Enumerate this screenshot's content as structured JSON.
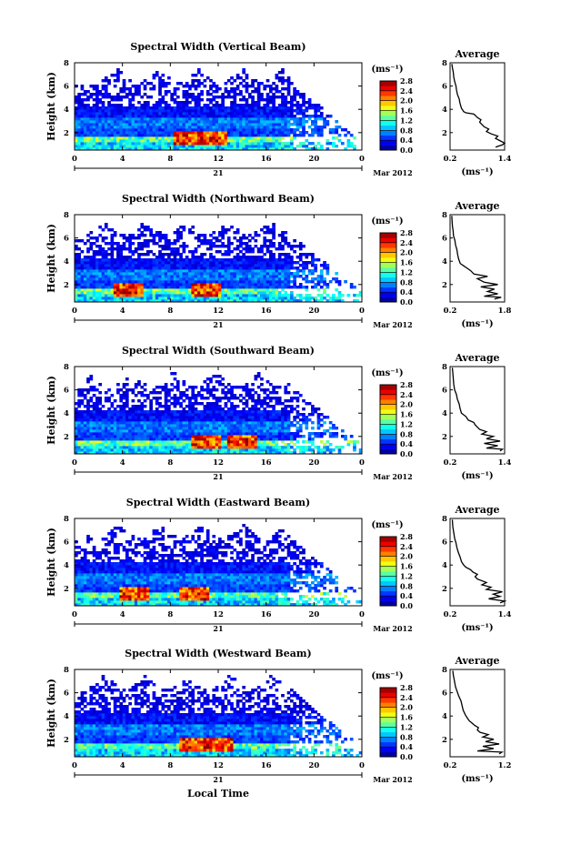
{
  "chart_data": [
    {
      "type": "heatmap",
      "title": "Spectral Width (Vertical Beam)",
      "ylabel": "Height (km)",
      "x_ticks": [
        "0",
        "4",
        "8",
        "12",
        "16",
        "20",
        "0"
      ],
      "y_ticks": [
        "2",
        "4",
        "6",
        "8"
      ],
      "xlim": [
        0,
        24
      ],
      "ylim": [
        0.5,
        8
      ],
      "date_day": "21",
      "date_label": "Mar 2012",
      "colorbar": {
        "unit": "(ms⁻¹)",
        "ticks": [
          "0.0",
          "0.4",
          "0.8",
          "1.2",
          "1.6",
          "2.0",
          "2.4",
          "2.8"
        ],
        "range": [
          0,
          2.8
        ]
      },
      "hotspot_hours": [
        9.5,
        11.5
      ],
      "avg": {
        "title": "Average",
        "unit": "(ms⁻¹)",
        "x_ticks": [
          "0.2",
          "1.4"
        ],
        "y_ticks": [
          "2",
          "4",
          "6",
          "8"
        ],
        "xlim": [
          0.2,
          1.4
        ],
        "profile": [
          [
            1.2,
            0.75
          ],
          [
            1.35,
            0.95
          ],
          [
            1.4,
            1.1
          ],
          [
            1.3,
            1.3
          ],
          [
            1.2,
            1.5
          ],
          [
            1.25,
            1.7
          ],
          [
            1.1,
            1.9
          ],
          [
            1.0,
            2.1
          ],
          [
            1.05,
            2.3
          ],
          [
            0.95,
            2.5
          ],
          [
            0.9,
            2.7
          ],
          [
            0.85,
            2.9
          ],
          [
            0.88,
            3.1
          ],
          [
            0.8,
            3.3
          ],
          [
            0.75,
            3.5
          ],
          [
            0.72,
            3.6
          ],
          [
            0.55,
            3.7
          ],
          [
            0.5,
            3.8
          ],
          [
            0.45,
            4.1
          ],
          [
            0.42,
            4.5
          ],
          [
            0.4,
            4.9
          ],
          [
            0.36,
            5.3
          ],
          [
            0.34,
            5.7
          ],
          [
            0.33,
            6.0
          ],
          [
            0.3,
            6.4
          ],
          [
            0.28,
            6.8
          ],
          [
            0.27,
            7.2
          ],
          [
            0.25,
            7.6
          ],
          [
            0.24,
            7.9
          ]
        ]
      }
    },
    {
      "type": "heatmap",
      "title": "Spectral Width (Northward Beam)",
      "ylabel": "Height (km)",
      "x_ticks": [
        "0",
        "4",
        "8",
        "12",
        "16",
        "20",
        "0"
      ],
      "y_ticks": [
        "2",
        "4",
        "6",
        "8"
      ],
      "xlim": [
        0,
        24
      ],
      "ylim": [
        0.5,
        8
      ],
      "date_day": "21",
      "date_label": "Mar 2012",
      "colorbar": {
        "unit": "(ms⁻¹)",
        "ticks": [
          "0.0",
          "0.4",
          "0.8",
          "1.2",
          "1.6",
          "2.0",
          "2.4",
          "2.8"
        ],
        "range": [
          0,
          2.8
        ]
      },
      "hotspot_hours": [
        4.5,
        11.0
      ],
      "avg": {
        "title": "Average",
        "unit": "(ms⁻¹)",
        "x_ticks": [
          "0.2",
          "1.8"
        ],
        "y_ticks": [
          "2",
          "4",
          "6",
          "8"
        ],
        "xlim": [
          0.2,
          1.8
        ],
        "profile": [
          [
            1.5,
            0.75
          ],
          [
            1.7,
            0.9
          ],
          [
            1.2,
            1.0
          ],
          [
            1.6,
            1.2
          ],
          [
            1.3,
            1.4
          ],
          [
            1.5,
            1.6
          ],
          [
            1.1,
            1.8
          ],
          [
            1.6,
            2.0
          ],
          [
            1.2,
            2.2
          ],
          [
            1.0,
            2.5
          ],
          [
            1.3,
            2.7
          ],
          [
            0.9,
            2.9
          ],
          [
            0.8,
            3.2
          ],
          [
            0.7,
            3.4
          ],
          [
            0.6,
            3.6
          ],
          [
            0.5,
            3.8
          ],
          [
            0.45,
            4.2
          ],
          [
            0.42,
            4.6
          ],
          [
            0.4,
            5.0
          ],
          [
            0.36,
            5.4
          ],
          [
            0.34,
            5.8
          ],
          [
            0.3,
            6.2
          ],
          [
            0.29,
            6.6
          ],
          [
            0.27,
            7.0
          ],
          [
            0.26,
            7.4
          ],
          [
            0.25,
            7.9
          ]
        ]
      }
    },
    {
      "type": "heatmap",
      "title": "Spectral Width (Southward Beam)",
      "ylabel": "Height (km)",
      "x_ticks": [
        "0",
        "4",
        "8",
        "12",
        "16",
        "20",
        "0"
      ],
      "y_ticks": [
        "2",
        "4",
        "6",
        "8"
      ],
      "xlim": [
        0,
        24
      ],
      "ylim": [
        0.5,
        8
      ],
      "date_day": "21",
      "date_label": "Mar 2012",
      "colorbar": {
        "unit": "(ms⁻¹)",
        "ticks": [
          "0.0",
          "0.4",
          "0.8",
          "1.2",
          "1.6",
          "2.0",
          "2.4",
          "2.8"
        ],
        "range": [
          0,
          2.8
        ]
      },
      "hotspot_hours": [
        11.0,
        14.0
      ],
      "avg": {
        "title": "Average",
        "unit": "(ms⁻¹)",
        "x_ticks": [
          "0.2",
          "1.4"
        ],
        "y_ticks": [
          "2",
          "4",
          "6",
          "8"
        ],
        "xlim": [
          0.2,
          1.4
        ],
        "profile": [
          [
            1.3,
            0.75
          ],
          [
            1.35,
            0.9
          ],
          [
            1.0,
            1.0
          ],
          [
            1.25,
            1.2
          ],
          [
            0.95,
            1.4
          ],
          [
            1.3,
            1.6
          ],
          [
            1.0,
            1.8
          ],
          [
            1.15,
            2.0
          ],
          [
            0.9,
            2.2
          ],
          [
            1.0,
            2.4
          ],
          [
            0.85,
            2.6
          ],
          [
            0.8,
            2.8
          ],
          [
            0.75,
            3.0
          ],
          [
            0.72,
            3.2
          ],
          [
            0.6,
            3.4
          ],
          [
            0.55,
            3.7
          ],
          [
            0.45,
            4.0
          ],
          [
            0.42,
            4.4
          ],
          [
            0.4,
            4.8
          ],
          [
            0.36,
            5.2
          ],
          [
            0.34,
            5.6
          ],
          [
            0.3,
            6.0
          ],
          [
            0.28,
            6.5
          ],
          [
            0.27,
            7.0
          ],
          [
            0.26,
            7.5
          ],
          [
            0.25,
            7.9
          ]
        ]
      }
    },
    {
      "type": "heatmap",
      "title": "Spectral Width (Eastward Beam)",
      "ylabel": "Height (km)",
      "x_ticks": [
        "0",
        "4",
        "8",
        "12",
        "16",
        "20",
        "0"
      ],
      "y_ticks": [
        "2",
        "4",
        "6",
        "8"
      ],
      "xlim": [
        0,
        24
      ],
      "ylim": [
        0.5,
        8
      ],
      "date_day": "21",
      "date_label": "Mar 2012",
      "colorbar": {
        "unit": "(ms⁻¹)",
        "ticks": [
          "0.0",
          "0.4",
          "0.8",
          "1.2",
          "1.6",
          "2.0",
          "2.4",
          "2.8"
        ],
        "range": [
          0,
          2.8
        ]
      },
      "hotspot_hours": [
        5.0,
        10.0
      ],
      "avg": {
        "title": "Average",
        "unit": "(ms⁻¹)",
        "x_ticks": [
          "0.2",
          "1.4"
        ],
        "y_ticks": [
          "2",
          "4",
          "6",
          "8"
        ],
        "xlim": [
          0.2,
          1.4
        ],
        "profile": [
          [
            1.3,
            0.75
          ],
          [
            1.4,
            0.9
          ],
          [
            1.05,
            1.1
          ],
          [
            1.3,
            1.3
          ],
          [
            1.15,
            1.5
          ],
          [
            1.35,
            1.7
          ],
          [
            1.0,
            1.9
          ],
          [
            1.1,
            2.1
          ],
          [
            0.9,
            2.3
          ],
          [
            1.0,
            2.5
          ],
          [
            0.8,
            2.8
          ],
          [
            0.75,
            3.0
          ],
          [
            0.8,
            3.2
          ],
          [
            0.7,
            3.4
          ],
          [
            0.65,
            3.6
          ],
          [
            0.55,
            3.8
          ],
          [
            0.5,
            4.0
          ],
          [
            0.45,
            4.3
          ],
          [
            0.42,
            4.7
          ],
          [
            0.38,
            5.1
          ],
          [
            0.35,
            5.5
          ],
          [
            0.33,
            5.9
          ],
          [
            0.3,
            6.3
          ],
          [
            0.28,
            6.8
          ],
          [
            0.26,
            7.3
          ],
          [
            0.25,
            7.9
          ]
        ]
      }
    },
    {
      "type": "heatmap",
      "title": "Spectral Width (Westward Beam)",
      "ylabel": "Height (km)",
      "xlabel": "Local Time",
      "x_ticks": [
        "0",
        "4",
        "8",
        "12",
        "16",
        "20",
        "0"
      ],
      "y_ticks": [
        "2",
        "4",
        "6",
        "8"
      ],
      "xlim": [
        0,
        24
      ],
      "ylim": [
        0.5,
        8
      ],
      "date_day": "21",
      "date_label": "Mar 2012",
      "colorbar": {
        "unit": "(ms⁻¹)",
        "ticks": [
          "0.0",
          "0.4",
          "0.8",
          "1.2",
          "1.6",
          "2.0",
          "2.4",
          "2.8"
        ],
        "range": [
          0,
          2.8
        ]
      },
      "hotspot_hours": [
        10.0,
        12.0
      ],
      "avg": {
        "title": "Average",
        "unit": "(ms⁻¹)",
        "x_ticks": [
          "0.2",
          "1.2"
        ],
        "y_ticks": [
          "2",
          "4",
          "6",
          "8"
        ],
        "xlim": [
          0.2,
          1.2
        ],
        "profile": [
          [
            1.1,
            0.75
          ],
          [
            1.15,
            0.9
          ],
          [
            0.7,
            1.0
          ],
          [
            1.0,
            1.2
          ],
          [
            0.8,
            1.4
          ],
          [
            1.1,
            1.6
          ],
          [
            0.85,
            1.8
          ],
          [
            1.0,
            2.0
          ],
          [
            0.8,
            2.2
          ],
          [
            0.9,
            2.4
          ],
          [
            0.75,
            2.6
          ],
          [
            0.7,
            2.8
          ],
          [
            0.72,
            3.0
          ],
          [
            0.65,
            3.2
          ],
          [
            0.6,
            3.4
          ],
          [
            0.55,
            3.6
          ],
          [
            0.52,
            3.8
          ],
          [
            0.48,
            4.1
          ],
          [
            0.44,
            4.5
          ],
          [
            0.42,
            4.9
          ],
          [
            0.4,
            5.3
          ],
          [
            0.36,
            5.7
          ],
          [
            0.33,
            6.1
          ],
          [
            0.3,
            6.5
          ],
          [
            0.28,
            7.0
          ],
          [
            0.26,
            7.5
          ],
          [
            0.25,
            7.9
          ]
        ]
      }
    }
  ]
}
